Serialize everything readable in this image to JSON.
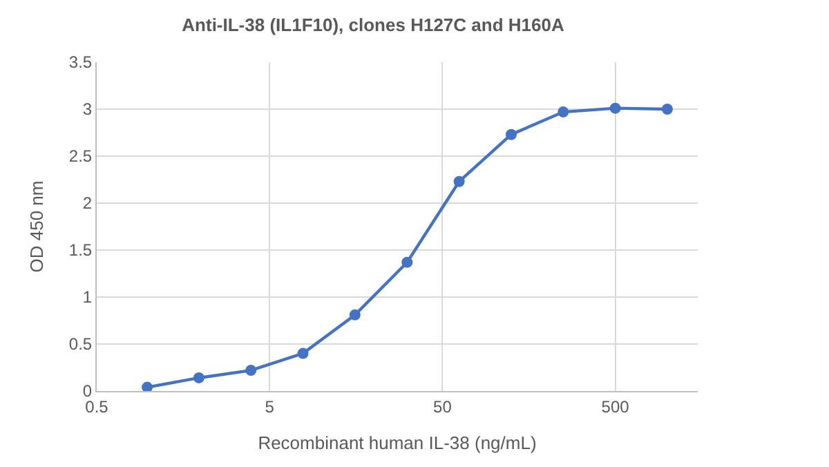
{
  "chart_data": {
    "type": "line",
    "title": "Anti-IL-38 (IL1F10), clones H127C and H160A",
    "xlabel": "Recombinant human IL-38 (ng/mL)",
    "ylabel": "OD 450 nm",
    "x": [
      0.98,
      1.95,
      3.9,
      7.8,
      15.6,
      31.25,
      62.5,
      125,
      250,
      500,
      1000
    ],
    "series": [
      {
        "color": "#4472c4",
        "values": [
          0.04,
          0.14,
          0.22,
          0.4,
          0.81,
          1.37,
          2.23,
          2.73,
          2.97,
          3.01,
          3.0
        ]
      }
    ],
    "log": "x",
    "xlim": [
      0.5,
      1500
    ],
    "xticks": [
      0.5,
      5,
      50,
      500
    ],
    "ylim": [
      0,
      3.5
    ],
    "yticks": [
      0,
      0.5,
      1,
      1.5,
      2,
      2.5,
      3,
      3.5
    ],
    "grid": true,
    "marker": "circle",
    "line_style": "solid"
  }
}
